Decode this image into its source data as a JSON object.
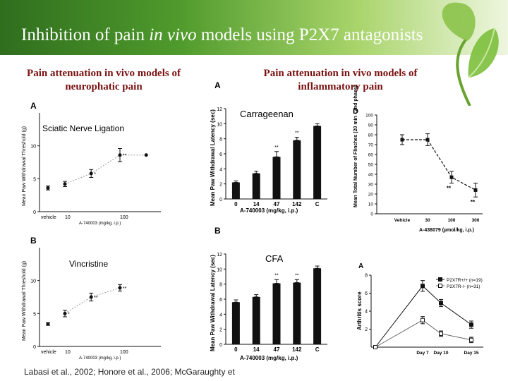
{
  "slide": {
    "title_pre": "Inhibition of pain ",
    "title_italic": "in vivo",
    "title_post": " models using P2X7 antagonists",
    "left_heading": "Pain attenuation in vivo models of neurophatic pain",
    "right_heading": "Pain attenuation in vivo models of inflammatory pain",
    "citation": "Labasi et al., 2002; Honore et al., 2006; McGaraughty et"
  },
  "colors": {
    "header_dark": "#2f6e1e",
    "header_light": "#eef6df",
    "heading_text": "#7a1212",
    "bar": "#111111",
    "leaf": "#7cbf3c"
  },
  "chart_data": [
    {
      "id": "sciatic",
      "panel_letter": "A",
      "type": "scatter",
      "title": "Sciatic Nerve Ligation",
      "ylabel": "Mean Paw Withdrawal Threshold (g)",
      "xlabel": "A-740003 (mg/kg, i.p.)",
      "vehicle_label": "vehicle",
      "x_ticks": [
        "10",
        "100"
      ],
      "y_ticks": [
        "0",
        "5",
        "10"
      ],
      "ylim": [
        0,
        15
      ],
      "vehicle": {
        "y": 3.6,
        "err": 0.3
      },
      "x": [
        10,
        30,
        100,
        300
      ],
      "y": [
        4.2,
        5.8,
        8.6,
        8.6
      ],
      "err": [
        0.4,
        0.6,
        1.0,
        0.0
      ],
      "sig": [
        "",
        "*",
        "**",
        ""
      ],
      "note": "points at 10, 30 and 100 mg/kg shown"
    },
    {
      "id": "vincristine",
      "panel_letter": "B",
      "type": "scatter",
      "title": "Vincristine",
      "ylabel": "Mean Paw Withdrawal Threshold (g)",
      "xlabel": "A-740003 (mg/kg, i.p.)",
      "vehicle_label": "vehicle",
      "x_ticks": [
        "10",
        "100"
      ],
      "y_ticks": [
        "0",
        "5",
        "10"
      ],
      "ylim": [
        0,
        15
      ],
      "vehicle": {
        "y": 3.4,
        "err": 0.2
      },
      "x": [
        10,
        30,
        100
      ],
      "y": [
        5.0,
        7.5,
        8.9
      ],
      "err": [
        0.5,
        0.6,
        0.5
      ],
      "sig": [
        "*",
        "**",
        "**"
      ]
    },
    {
      "id": "carrageenan",
      "panel_letter": "A",
      "type": "bar",
      "title": "Carrageenan",
      "ylabel": "Mean Paw Withdrawal Latency (sec)",
      "xlabel": "A-740003 (mg/kg, i.p.)",
      "categories": [
        "0",
        "14",
        "47",
        "142",
        "C"
      ],
      "values": [
        2.2,
        3.4,
        5.6,
        7.8,
        9.7
      ],
      "err": [
        0.2,
        0.3,
        0.7,
        0.4,
        0.3
      ],
      "sig": [
        "",
        "",
        "**",
        "**",
        ""
      ],
      "y_ticks": [
        "0",
        "2",
        "4",
        "6",
        "8",
        "10",
        "12"
      ],
      "ylim": [
        0,
        12
      ]
    },
    {
      "id": "cfa",
      "panel_letter": "B",
      "type": "bar",
      "title": "CFA",
      "ylabel": "Mean Paw Withdrawal Latency (sec)",
      "xlabel": "A-740003 (mg/kg, i.p.)",
      "categories": [
        "0",
        "14",
        "47",
        "142",
        "C"
      ],
      "values": [
        5.6,
        6.3,
        8.1,
        8.2,
        10.1
      ],
      "err": [
        0.3,
        0.3,
        0.5,
        0.4,
        0.3
      ],
      "sig": [
        "",
        "",
        "**",
        "**",
        ""
      ],
      "y_ticks": [
        "0",
        "2",
        "4",
        "6",
        "8",
        "10",
        "12"
      ],
      "ylim": [
        0,
        12
      ]
    },
    {
      "id": "formalin",
      "panel_letter": "D",
      "type": "line",
      "ylabel": "Mean Total Number of Flinches (20 min - 2nd phase)",
      "xlabel": "A-438079 (µmol/kg, i.p.)",
      "categories": [
        "Vehicle",
        "30",
        "100",
        "300"
      ],
      "values": [
        75,
        75,
        37,
        24
      ],
      "err": [
        5,
        6,
        6,
        7
      ],
      "sig": [
        "",
        "",
        "**",
        "**"
      ],
      "y_ticks": [
        "0",
        "10",
        "20",
        "30",
        "40",
        "50",
        "60",
        "70",
        "80",
        "90",
        "100"
      ],
      "ylim": [
        0,
        100
      ]
    },
    {
      "id": "arthritis",
      "panel_letter": "A",
      "type": "line",
      "ylabel": "Arthritis score",
      "categories": [
        "",
        "Day 7",
        "Day 10",
        "Day 15"
      ],
      "y_ticks": [
        "2",
        "4",
        "6",
        "8"
      ],
      "ylim": [
        0,
        8
      ],
      "series": [
        {
          "name": "P2X7R+/+ (n=19)",
          "values": [
            0,
            6.8,
            4.9,
            2.5
          ],
          "err": [
            0,
            0.6,
            0.4,
            0.4
          ],
          "marker": "filled"
        },
        {
          "name": "P2X7R-/- (n=31)",
          "values": [
            0,
            3.0,
            1.5,
            0.8
          ],
          "err": [
            0,
            0.4,
            0.3,
            0.3
          ],
          "marker": "open"
        }
      ]
    }
  ]
}
